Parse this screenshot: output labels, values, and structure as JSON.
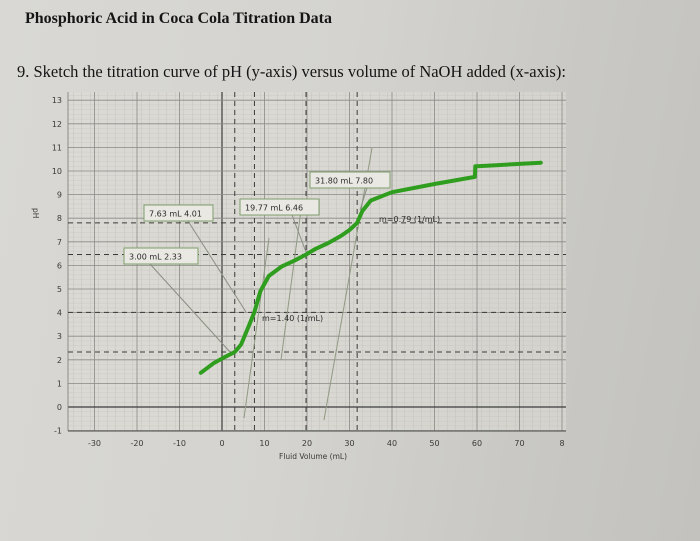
{
  "document": {
    "title": "Phosphoric Acid in Coca Cola Titration Data",
    "question": "9. Sketch the titration curve of pH (y-axis) versus volume of NaOH added (x-axis):"
  },
  "chart_data": {
    "type": "line",
    "title": "",
    "xlabel": "Fluid Volume (mL)",
    "ylabel": "pH",
    "xlim": [
      -35,
      80
    ],
    "ylim": [
      -1,
      13
    ],
    "x_ticks": [
      "-30",
      "-20",
      "-10",
      "0",
      "10",
      "20",
      "30",
      "40",
      "50",
      "60",
      "70",
      "8"
    ],
    "y_ticks": [
      "13",
      "12",
      "11",
      "10",
      "9",
      "8",
      "7",
      "6",
      "5",
      "4",
      "3",
      "2",
      "1",
      "0",
      "-1"
    ],
    "grid": true,
    "series": [
      {
        "name": "pH",
        "color": "#2f9e1f",
        "x": [
          -5,
          -2,
          1,
          3,
          4.5,
          6,
          7.6,
          9,
          11,
          14,
          17,
          19.8,
          22,
          25,
          28,
          30,
          31.8,
          33,
          35,
          40,
          50,
          59.5,
          59.6,
          60,
          65,
          70,
          75
        ],
        "y": [
          1.45,
          1.85,
          2.15,
          2.33,
          2.65,
          3.3,
          4.01,
          4.9,
          5.55,
          5.95,
          6.2,
          6.46,
          6.7,
          6.95,
          7.25,
          7.5,
          7.8,
          8.3,
          8.75,
          9.1,
          9.45,
          9.75,
          10.2,
          10.2,
          10.25,
          10.3,
          10.35
        ]
      }
    ],
    "annotations": [
      {
        "label": "3.00 mL  2.33",
        "x": 3.0,
        "y": 2.33
      },
      {
        "label": "7.63 mL  4.01",
        "x": 7.63,
        "y": 4.01
      },
      {
        "label": "19.77 mL  6.46",
        "x": 19.77,
        "y": 6.46
      },
      {
        "label": "31.80 mL  7.80",
        "x": 31.8,
        "y": 7.8
      },
      {
        "label": "m=1.40 (1/mL)",
        "x": 9,
        "y": 4.0
      },
      {
        "label": "m=0.79 (1/mL)",
        "x": 36,
        "y": 7.8
      }
    ],
    "reference_lines": {
      "horizontal_dashed_pH": [
        2.33,
        4.01,
        6.46,
        7.8
      ],
      "vertical_dashed_mL": [
        3.0,
        7.63,
        19.77,
        31.8
      ]
    }
  }
}
